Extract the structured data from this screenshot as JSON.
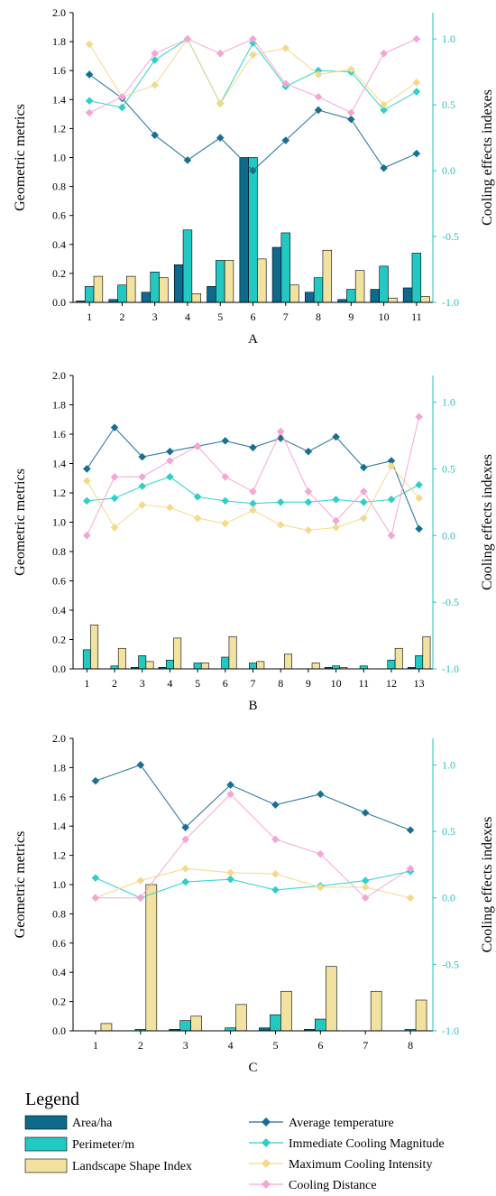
{
  "colors": {
    "area": "#0e6a8c",
    "perimeter": "#22c8c2",
    "lsi": "#f2e2a0",
    "avg_temp": "#1a6e94",
    "icm": "#2ecfc8",
    "mci": "#f3d98a",
    "cooling_distance": "#f2a6d6",
    "right_axis": "#2bbfbf"
  },
  "legend": {
    "title": "Legend",
    "bar_items": [
      "Area/ha",
      "Perimeter/m",
      "Landscape Shape Index"
    ],
    "line_items": [
      "Average temperature",
      "Immediate Cooling Magnitude",
      "Maximum Cooling Intensity",
      "Cooling Distance"
    ]
  },
  "chart_data": [
    {
      "type": "bar",
      "panel_label": "A",
      "ylabel": "Geometric metrics",
      "y2label": "Cooling effects indexes",
      "ylim": [
        0,
        2.0
      ],
      "y2lim": [
        -1.0,
        1.2
      ],
      "yticks": [
        "0.0",
        "0.2",
        "0.4",
        "0.6",
        "0.8",
        "1.0",
        "1.2",
        "1.4",
        "1.6",
        "1.8",
        "2.0"
      ],
      "y2ticks": [
        "-1.0",
        "-0.5",
        "0.0",
        "0.5",
        "1.0"
      ],
      "categories": [
        "1",
        "2",
        "3",
        "4",
        "5",
        "6",
        "7",
        "8",
        "9",
        "10",
        "11"
      ],
      "series": [
        {
          "name": "Area/ha",
          "values": [
            0.01,
            0.02,
            0.07,
            0.26,
            0.11,
            1.0,
            0.38,
            0.07,
            0.02,
            0.09,
            0.1
          ]
        },
        {
          "name": "Perimeter/m",
          "values": [
            0.11,
            0.12,
            0.21,
            0.5,
            0.29,
            1.0,
            0.48,
            0.17,
            0.09,
            0.25,
            0.34
          ]
        },
        {
          "name": "Landscape Shape Index",
          "values": [
            0.18,
            0.18,
            0.17,
            0.06,
            0.29,
            0.3,
            0.12,
            0.36,
            0.22,
            0.03,
            0.04
          ]
        },
        {
          "name": "Average temperature",
          "values": [
            0.73,
            0.55,
            0.27,
            0.08,
            0.25,
            0.0,
            0.23,
            0.46,
            0.39,
            0.02,
            0.13
          ]
        },
        {
          "name": "Immediate Cooling Magnitude",
          "values": [
            0.53,
            0.48,
            0.84,
            1.0,
            0.51,
            0.97,
            0.64,
            0.76,
            0.75,
            0.46,
            0.6
          ]
        },
        {
          "name": "Maximum Cooling Intensity",
          "values": [
            0.96,
            0.56,
            0.65,
            1.0,
            0.51,
            0.88,
            0.93,
            0.73,
            0.77,
            0.5,
            0.67
          ]
        },
        {
          "name": "Cooling Distance",
          "values": [
            0.44,
            0.56,
            0.89,
            1.0,
            0.89,
            1.0,
            0.66,
            0.56,
            0.44,
            0.89,
            1.0
          ]
        }
      ]
    },
    {
      "type": "bar",
      "panel_label": "B",
      "ylabel": "Geometric metrics",
      "y2label": "Cooling effects indexes",
      "ylim": [
        0,
        2.0
      ],
      "y2lim": [
        -1.0,
        1.2
      ],
      "yticks": [
        "0.0",
        "0.2",
        "0.4",
        "0.6",
        "0.8",
        "1.0",
        "1.2",
        "1.4",
        "1.6",
        "1.8",
        "2.0"
      ],
      "y2ticks": [
        "-1.0",
        "-0.5",
        "0.0",
        "0.5",
        "1.0"
      ],
      "categories": [
        "1",
        "2",
        "3",
        "4",
        "5",
        "6",
        "7",
        "8",
        "9",
        "10",
        "11",
        "12",
        "13"
      ],
      "series": [
        {
          "name": "Area/ha",
          "values": [
            0.0,
            0.0,
            0.01,
            0.01,
            0.0,
            0.0,
            0.0,
            0.0,
            0.0,
            0.01,
            0.0,
            0.0,
            0.01
          ]
        },
        {
          "name": "Perimeter/m",
          "values": [
            0.13,
            0.02,
            0.09,
            0.06,
            0.04,
            0.08,
            0.04,
            0.0,
            0.0,
            0.02,
            0.02,
            0.06,
            0.09
          ]
        },
        {
          "name": "Landscape Shape Index",
          "values": [
            0.3,
            0.14,
            0.05,
            0.21,
            0.04,
            0.22,
            0.05,
            0.1,
            0.04,
            0.01,
            0.0,
            0.14,
            0.22
          ]
        },
        {
          "name": "Average temperature",
          "values": [
            0.5,
            0.81,
            0.59,
            0.63,
            0.67,
            0.71,
            0.66,
            0.73,
            0.63,
            0.74,
            0.51,
            0.56,
            0.05
          ]
        },
        {
          "name": "Immediate Cooling Magnitude",
          "values": [
            0.26,
            0.28,
            0.37,
            0.44,
            0.29,
            0.26,
            0.24,
            0.25,
            0.25,
            0.27,
            0.25,
            0.27,
            0.38
          ]
        },
        {
          "name": "Maximum Cooling Intensity",
          "values": [
            0.41,
            0.06,
            0.23,
            0.21,
            0.13,
            0.09,
            0.19,
            0.08,
            0.04,
            0.06,
            0.13,
            0.52,
            0.28
          ]
        },
        {
          "name": "Cooling Distance",
          "values": [
            0.0,
            0.44,
            0.44,
            0.56,
            0.67,
            0.44,
            0.33,
            0.78,
            0.33,
            0.11,
            0.33,
            0.0,
            0.89
          ]
        }
      ]
    },
    {
      "type": "bar",
      "panel_label": "C",
      "ylabel": "Geometric metrics",
      "y2label": "Cooling effects indexes",
      "ylim": [
        0,
        2.0
      ],
      "y2lim": [
        -1.0,
        1.2
      ],
      "yticks": [
        "0.0",
        "0.2",
        "0.4",
        "0.6",
        "0.8",
        "1.0",
        "1.2",
        "1.4",
        "1.6",
        "1.8",
        "2.0"
      ],
      "y2ticks": [
        "-1.0",
        "-0.5",
        "0.0",
        "0.5",
        "1.0"
      ],
      "categories": [
        "1",
        "2",
        "3",
        "4",
        "5",
        "6",
        "7",
        "8"
      ],
      "series": [
        {
          "name": "Area/ha",
          "values": [
            0.0,
            0.0,
            0.01,
            0.0,
            0.02,
            0.01,
            0.0,
            0.0
          ]
        },
        {
          "name": "Perimeter/m",
          "values": [
            0.0,
            0.01,
            0.07,
            0.02,
            0.11,
            0.08,
            0.0,
            0.01
          ]
        },
        {
          "name": "Landscape Shape Index",
          "values": [
            0.05,
            1.0,
            0.1,
            0.18,
            0.27,
            0.44,
            0.27,
            0.21
          ]
        },
        {
          "name": "Average temperature",
          "values": [
            0.88,
            1.0,
            0.53,
            0.85,
            0.7,
            0.78,
            0.64,
            0.51
          ]
        },
        {
          "name": "Immediate Cooling Magnitude",
          "values": [
            0.15,
            0.0,
            0.12,
            0.14,
            0.06,
            0.09,
            0.13,
            0.2
          ]
        },
        {
          "name": "Maximum Cooling Intensity",
          "values": [
            0.0,
            0.13,
            0.22,
            0.19,
            0.18,
            0.08,
            0.08,
            0.0
          ]
        },
        {
          "name": "Cooling Distance",
          "values": [
            0.0,
            0.0,
            0.44,
            0.78,
            0.44,
            0.33,
            0.0,
            0.22
          ]
        }
      ]
    }
  ]
}
